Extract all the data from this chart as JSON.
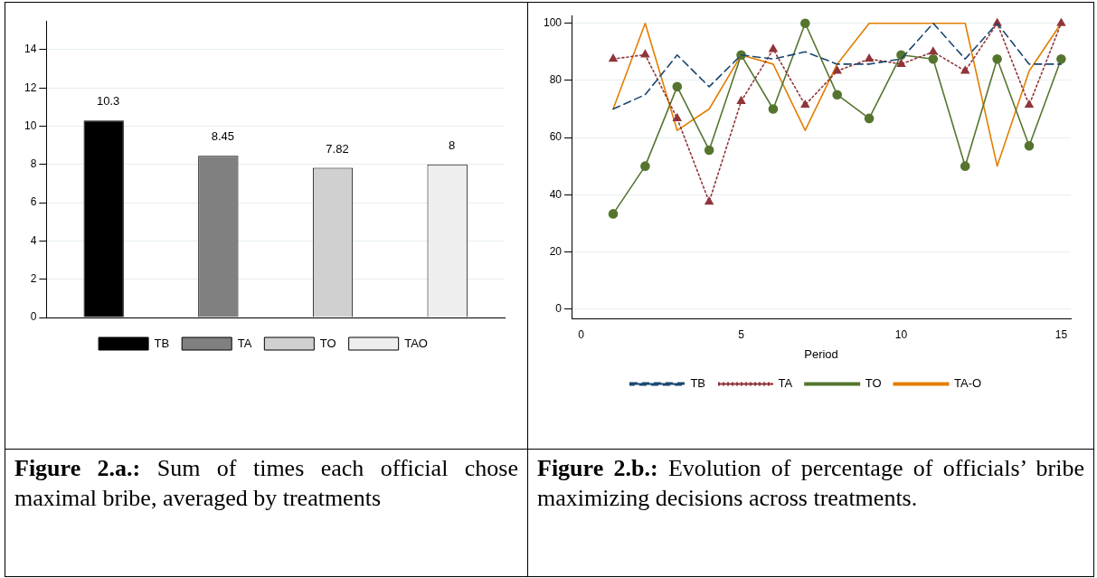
{
  "chart_data": [
    {
      "type": "bar",
      "categories": [
        null
      ],
      "series": [
        {
          "name": "TB",
          "color": "#000000",
          "values": [
            10.3
          ]
        },
        {
          "name": "TA",
          "color": "#808080",
          "values": [
            8.45
          ]
        },
        {
          "name": "TO",
          "color": "#d0d0d0",
          "values": [
            7.82
          ]
        },
        {
          "name": "TAO",
          "color": "#eeeeee",
          "values": [
            8
          ]
        }
      ],
      "ylim": [
        0,
        15.5
      ],
      "yticks": [
        0,
        2,
        4,
        6,
        8,
        10,
        12,
        14
      ],
      "grid": "y",
      "legend": "bottom",
      "data_labels": true,
      "annotations": [
        "Figure 2.a.: Sum of times each official chose maximal bribe, averaged by treatments"
      ]
    },
    {
      "type": "line",
      "x": [
        1,
        2,
        3,
        4,
        5,
        6,
        7,
        8,
        9,
        10,
        11,
        12,
        13,
        14,
        15
      ],
      "series": [
        {
          "name": "TB",
          "color": "#1a476f",
          "line_style": "dashed",
          "marker": "none",
          "values": [
            70,
            75,
            88.9,
            77.8,
            88.9,
            87.5,
            90,
            85.7,
            85.7,
            87.5,
            100,
            87.5,
            100,
            85.7,
            85.7
          ]
        },
        {
          "name": "TA",
          "color": "#90353b",
          "line_style": "dotted",
          "marker": "triangle",
          "values": [
            87.5,
            89,
            66.7,
            37.5,
            72.7,
            90.9,
            71.4,
            83.3,
            87.5,
            85.7,
            90,
            83.3,
            100,
            71.4,
            100
          ]
        },
        {
          "name": "TO",
          "color": "#55752f",
          "line_style": "solid",
          "marker": "circle",
          "values": [
            33.3,
            50,
            77.8,
            55.6,
            88.9,
            70,
            100,
            75,
            66.7,
            88.9,
            87.5,
            50,
            87.5,
            57.1,
            87.5
          ]
        },
        {
          "name": "TA-O",
          "color": "#e37e00",
          "line_style": "solid",
          "marker": "none",
          "values": [
            70,
            100,
            62.5,
            70,
            88.9,
            85.7,
            62.5,
            85.7,
            100,
            100,
            100,
            100,
            50,
            83.3,
            100
          ]
        }
      ],
      "xlim": [
        -0.3,
        15.3
      ],
      "xticks": [
        0,
        5,
        10,
        15
      ],
      "ylim": [
        -3.3,
        102.7
      ],
      "yticks": [
        0,
        20,
        40,
        60,
        80,
        100
      ],
      "xlabel": "Period",
      "grid": "y",
      "legend": "bottom",
      "annotations": [
        "Figure 2.b.: Evolution of percentage of officials’ bribe maximizing decisions across treatments."
      ]
    }
  ]
}
